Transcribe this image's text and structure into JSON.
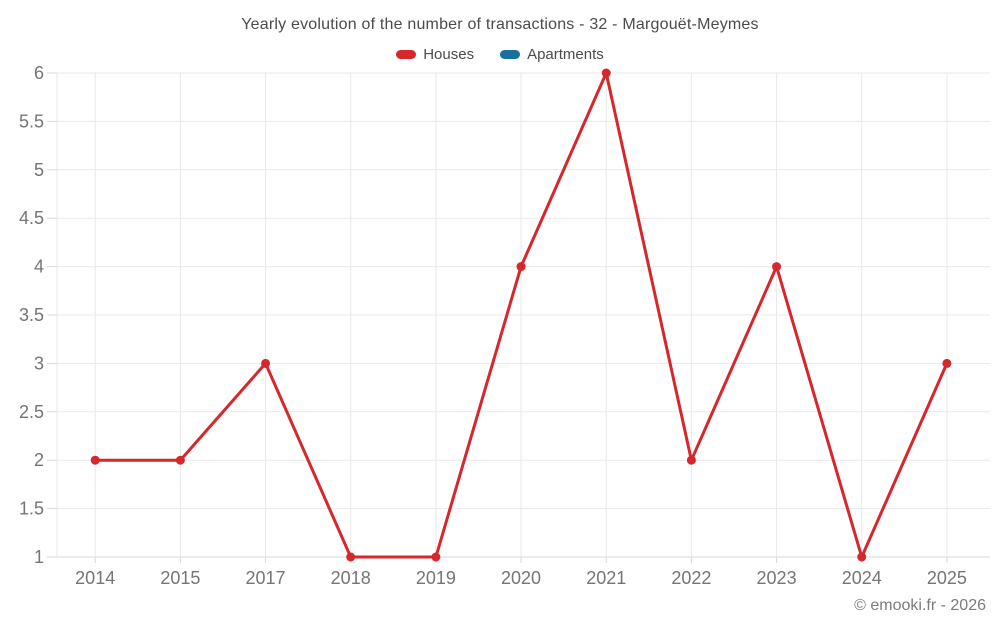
{
  "chart_data": {
    "type": "line",
    "title": "Yearly evolution of the number of transactions - 32 - Margouët-Meymes",
    "categories": [
      "2014",
      "2015",
      "2017",
      "2018",
      "2019",
      "2020",
      "2021",
      "2022",
      "2023",
      "2024",
      "2025"
    ],
    "series": [
      {
        "name": "Houses",
        "color": "#d6272c",
        "values": [
          2,
          2,
          3,
          1,
          1,
          4,
          6,
          2,
          4,
          1,
          3
        ]
      },
      {
        "name": "Apartments",
        "color": "#17719c",
        "values": []
      }
    ],
    "ylim": [
      1,
      6
    ],
    "ytick_step": 0.5,
    "grid": true,
    "legend_position": "top",
    "axis_colors": {
      "grid": "#e9e9e9",
      "axis": "#d9d9d9",
      "tick": "#d9d9d9",
      "label": "#757575"
    },
    "footer": "© emooki.fr - 2026"
  }
}
